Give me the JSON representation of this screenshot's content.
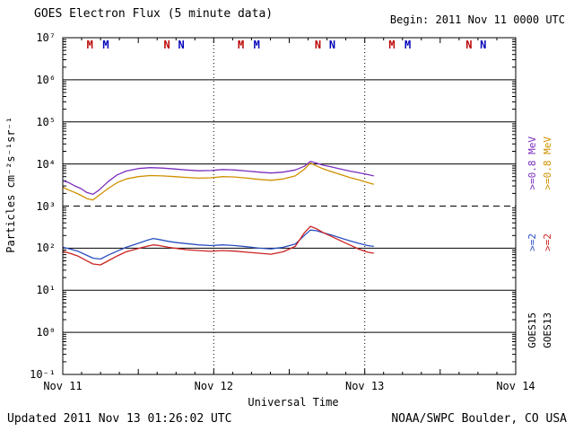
{
  "header": {
    "title": "GOES Electron Flux (5 minute data)",
    "begin": "Begin: 2011 Nov 11 0000 UTC"
  },
  "footer": {
    "updated": "Updated 2011 Nov 13 01:26:02 UTC",
    "source": "NOAA/SWPC Boulder, CO USA"
  },
  "right_legend": {
    "goes15": {
      "energy_low": ">=0.8 MeV",
      "energy_low_color": "#7B2FBE",
      "energy_high": ">=2",
      "energy_high_color": "#2A4FC0",
      "name": "GOES15",
      "name_color": "#000000"
    },
    "goes13": {
      "energy_low": ">=0.8 MeV",
      "energy_low_color": "#D09000",
      "energy_high": ">=2",
      "energy_high_color": "#CC2222",
      "name": "GOES13",
      "name_color": "#000000"
    }
  },
  "chart_data": {
    "type": "line",
    "title": "GOES Electron Flux (5 minute data)",
    "xlabel": "Universal Time",
    "ylabel": "Particles cm⁻²s⁻¹sr⁻¹",
    "x_start": "2011 Nov 11 0000 UTC",
    "x_range_days": [
      0,
      3
    ],
    "x_ticks": [
      {
        "day": 0,
        "label": "Nov 11"
      },
      {
        "day": 1,
        "label": "Nov 12"
      },
      {
        "day": 2,
        "label": "Nov 13"
      },
      {
        "day": 3,
        "label": "Nov 14"
      }
    ],
    "y_range": [
      0.1,
      10000000
    ],
    "y_scale": "log",
    "y_ticks": [
      {
        "value": 10000000,
        "label": "10⁷"
      },
      {
        "value": 1000000,
        "label": "10⁶"
      },
      {
        "value": 100000,
        "label": "10⁵"
      },
      {
        "value": 10000,
        "label": "10⁴"
      },
      {
        "value": 1000,
        "label": "10³"
      },
      {
        "value": 100,
        "label": "10²"
      },
      {
        "value": 10,
        "label": "10¹"
      },
      {
        "value": 1,
        "label": "10⁰"
      },
      {
        "value": 0.1,
        "label": "10⁻¹"
      }
    ],
    "grid": "solid horizontal line at each decade",
    "threshold": {
      "value": 1000,
      "style": "dashed"
    },
    "day_boundary_lines_days": [
      1,
      2
    ],
    "markers_top": [
      {
        "x": 0.18,
        "label": "M",
        "color": "#BB0000"
      },
      {
        "x": 0.285,
        "label": "M",
        "color": "#0000BB"
      },
      {
        "x": 0.69,
        "label": "N",
        "color": "#BB0000"
      },
      {
        "x": 0.785,
        "label": "N",
        "color": "#0000BB"
      },
      {
        "x": 1.18,
        "label": "M",
        "color": "#BB0000"
      },
      {
        "x": 1.285,
        "label": "M",
        "color": "#0000BB"
      },
      {
        "x": 1.69,
        "label": "N",
        "color": "#BB0000"
      },
      {
        "x": 1.785,
        "label": "N",
        "color": "#0000BB"
      },
      {
        "x": 2.18,
        "label": "M",
        "color": "#BB0000"
      },
      {
        "x": 2.285,
        "label": "M",
        "color": "#0000BB"
      },
      {
        "x": 2.69,
        "label": "N",
        "color": "#BB0000"
      },
      {
        "x": 2.785,
        "label": "N",
        "color": "#0000BB"
      }
    ],
    "series": [
      {
        "name": "GOES15 >=0.8 MeV",
        "color": "#7B2FBE",
        "points": [
          [
            0.0,
            4000
          ],
          [
            0.04,
            3600
          ],
          [
            0.08,
            3000
          ],
          [
            0.12,
            2600
          ],
          [
            0.16,
            2100
          ],
          [
            0.2,
            1900
          ],
          [
            0.24,
            2400
          ],
          [
            0.3,
            3800
          ],
          [
            0.36,
            5500
          ],
          [
            0.42,
            6800
          ],
          [
            0.5,
            7800
          ],
          [
            0.58,
            8200
          ],
          [
            0.66,
            8000
          ],
          [
            0.74,
            7600
          ],
          [
            0.82,
            7200
          ],
          [
            0.9,
            6900
          ],
          [
            0.98,
            7000
          ],
          [
            1.06,
            7400
          ],
          [
            1.14,
            7200
          ],
          [
            1.22,
            6800
          ],
          [
            1.3,
            6400
          ],
          [
            1.38,
            6100
          ],
          [
            1.46,
            6400
          ],
          [
            1.54,
            7200
          ],
          [
            1.6,
            8800
          ],
          [
            1.64,
            11500
          ],
          [
            1.68,
            10500
          ],
          [
            1.72,
            9500
          ],
          [
            1.78,
            8500
          ],
          [
            1.84,
            7600
          ],
          [
            1.9,
            6800
          ],
          [
            1.96,
            6200
          ],
          [
            2.02,
            5600
          ],
          [
            2.06,
            5200
          ]
        ]
      },
      {
        "name": "GOES13 >=0.8 MeV",
        "color": "#D09000",
        "points": [
          [
            0.0,
            2800
          ],
          [
            0.04,
            2400
          ],
          [
            0.08,
            2100
          ],
          [
            0.12,
            1800
          ],
          [
            0.16,
            1500
          ],
          [
            0.2,
            1400
          ],
          [
            0.24,
            1800
          ],
          [
            0.3,
            2600
          ],
          [
            0.36,
            3600
          ],
          [
            0.42,
            4400
          ],
          [
            0.5,
            5000
          ],
          [
            0.58,
            5300
          ],
          [
            0.66,
            5200
          ],
          [
            0.74,
            5000
          ],
          [
            0.82,
            4800
          ],
          [
            0.9,
            4600
          ],
          [
            0.98,
            4700
          ],
          [
            1.06,
            5000
          ],
          [
            1.14,
            4900
          ],
          [
            1.22,
            4600
          ],
          [
            1.3,
            4300
          ],
          [
            1.38,
            4100
          ],
          [
            1.46,
            4400
          ],
          [
            1.54,
            5200
          ],
          [
            1.6,
            7500
          ],
          [
            1.64,
            10500
          ],
          [
            1.68,
            9000
          ],
          [
            1.72,
            7800
          ],
          [
            1.78,
            6600
          ],
          [
            1.84,
            5600
          ],
          [
            1.9,
            4800
          ],
          [
            1.96,
            4200
          ],
          [
            2.02,
            3600
          ],
          [
            2.06,
            3300
          ]
        ]
      },
      {
        "name": "GOES15 >=2 MeV",
        "color": "#2A4FC0",
        "points": [
          [
            0.0,
            105
          ],
          [
            0.05,
            95
          ],
          [
            0.1,
            85
          ],
          [
            0.15,
            70
          ],
          [
            0.2,
            58
          ],
          [
            0.25,
            55
          ],
          [
            0.3,
            68
          ],
          [
            0.36,
            85
          ],
          [
            0.42,
            105
          ],
          [
            0.5,
            130
          ],
          [
            0.56,
            155
          ],
          [
            0.6,
            170
          ],
          [
            0.64,
            160
          ],
          [
            0.7,
            145
          ],
          [
            0.76,
            135
          ],
          [
            0.82,
            128
          ],
          [
            0.9,
            120
          ],
          [
            0.98,
            115
          ],
          [
            1.06,
            120
          ],
          [
            1.14,
            115
          ],
          [
            1.22,
            108
          ],
          [
            1.3,
            100
          ],
          [
            1.38,
            96
          ],
          [
            1.46,
            105
          ],
          [
            1.54,
            125
          ],
          [
            1.6,
            200
          ],
          [
            1.64,
            270
          ],
          [
            1.68,
            260
          ],
          [
            1.72,
            235
          ],
          [
            1.78,
            205
          ],
          [
            1.84,
            175
          ],
          [
            1.9,
            150
          ],
          [
            1.96,
            130
          ],
          [
            2.02,
            115
          ],
          [
            2.06,
            110
          ]
        ]
      },
      {
        "name": "GOES13 >=2 MeV",
        "color": "#CC2222",
        "points": [
          [
            0.0,
            85
          ],
          [
            0.05,
            75
          ],
          [
            0.1,
            65
          ],
          [
            0.15,
            52
          ],
          [
            0.2,
            42
          ],
          [
            0.25,
            40
          ],
          [
            0.3,
            50
          ],
          [
            0.36,
            65
          ],
          [
            0.42,
            82
          ],
          [
            0.5,
            98
          ],
          [
            0.56,
            112
          ],
          [
            0.6,
            120
          ],
          [
            0.64,
            115
          ],
          [
            0.7,
            105
          ],
          [
            0.76,
            98
          ],
          [
            0.82,
            92
          ],
          [
            0.9,
            88
          ],
          [
            0.98,
            84
          ],
          [
            1.06,
            88
          ],
          [
            1.14,
            85
          ],
          [
            1.22,
            80
          ],
          [
            1.3,
            76
          ],
          [
            1.38,
            72
          ],
          [
            1.46,
            82
          ],
          [
            1.54,
            110
          ],
          [
            1.6,
            230
          ],
          [
            1.64,
            330
          ],
          [
            1.68,
            290
          ],
          [
            1.72,
            240
          ],
          [
            1.78,
            190
          ],
          [
            1.84,
            150
          ],
          [
            1.9,
            120
          ],
          [
            1.96,
            95
          ],
          [
            2.02,
            80
          ],
          [
            2.06,
            76
          ]
        ]
      }
    ]
  }
}
